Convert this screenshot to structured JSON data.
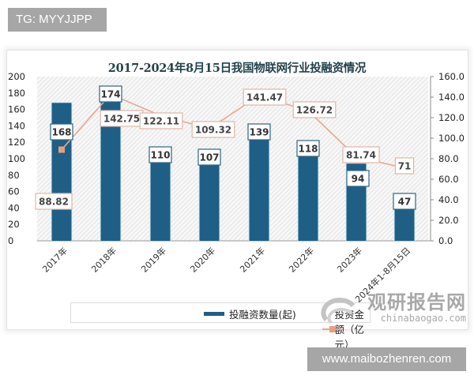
{
  "header": {
    "badge_text": "TG: MYYJJPP"
  },
  "footer": {
    "badge_text": "www.maibozhenren.com"
  },
  "watermark": {
    "cn": "观研报告网",
    "en": "chinabaogao.com"
  },
  "colors": {
    "bar": "#1f5f86",
    "line": "#e8a890",
    "marker": "#e8a07c",
    "title": "#24424d"
  },
  "chart_data": {
    "type": "bar+line",
    "title": "2017-2024年8月15日我国物联网行业投融资情况",
    "categories": [
      "2017年",
      "2018年",
      "2019年",
      "2020年",
      "2021年",
      "2022年",
      "2023年",
      "2024年1-8月15日"
    ],
    "series": [
      {
        "name": "投融资数量(起)",
        "type": "bar",
        "axis": "left",
        "values": [
          168,
          174,
          110,
          107,
          139,
          118,
          94,
          47
        ]
      },
      {
        "name": "投资金额（亿元）",
        "type": "line",
        "axis": "right",
        "values": [
          88.82,
          142.75,
          122.11,
          109.32,
          141.47,
          126.72,
          81.74,
          71
        ]
      }
    ],
    "left_axis": {
      "ylim": [
        0,
        200
      ],
      "ticks": [
        "0",
        "20",
        "40",
        "60",
        "80",
        "100",
        "120",
        "140",
        "160",
        "180",
        "200"
      ]
    },
    "right_axis": {
      "ylim": [
        0,
        160
      ],
      "ticks": [
        "0.0",
        "20.0",
        "40.0",
        "60.0",
        "80.0",
        "100.0",
        "120.0",
        "140.0",
        "160.0"
      ]
    },
    "legend": {
      "position": "bottom",
      "items": [
        "投融资数量(起)",
        "投资金额（亿元）"
      ]
    },
    "grid": false
  }
}
